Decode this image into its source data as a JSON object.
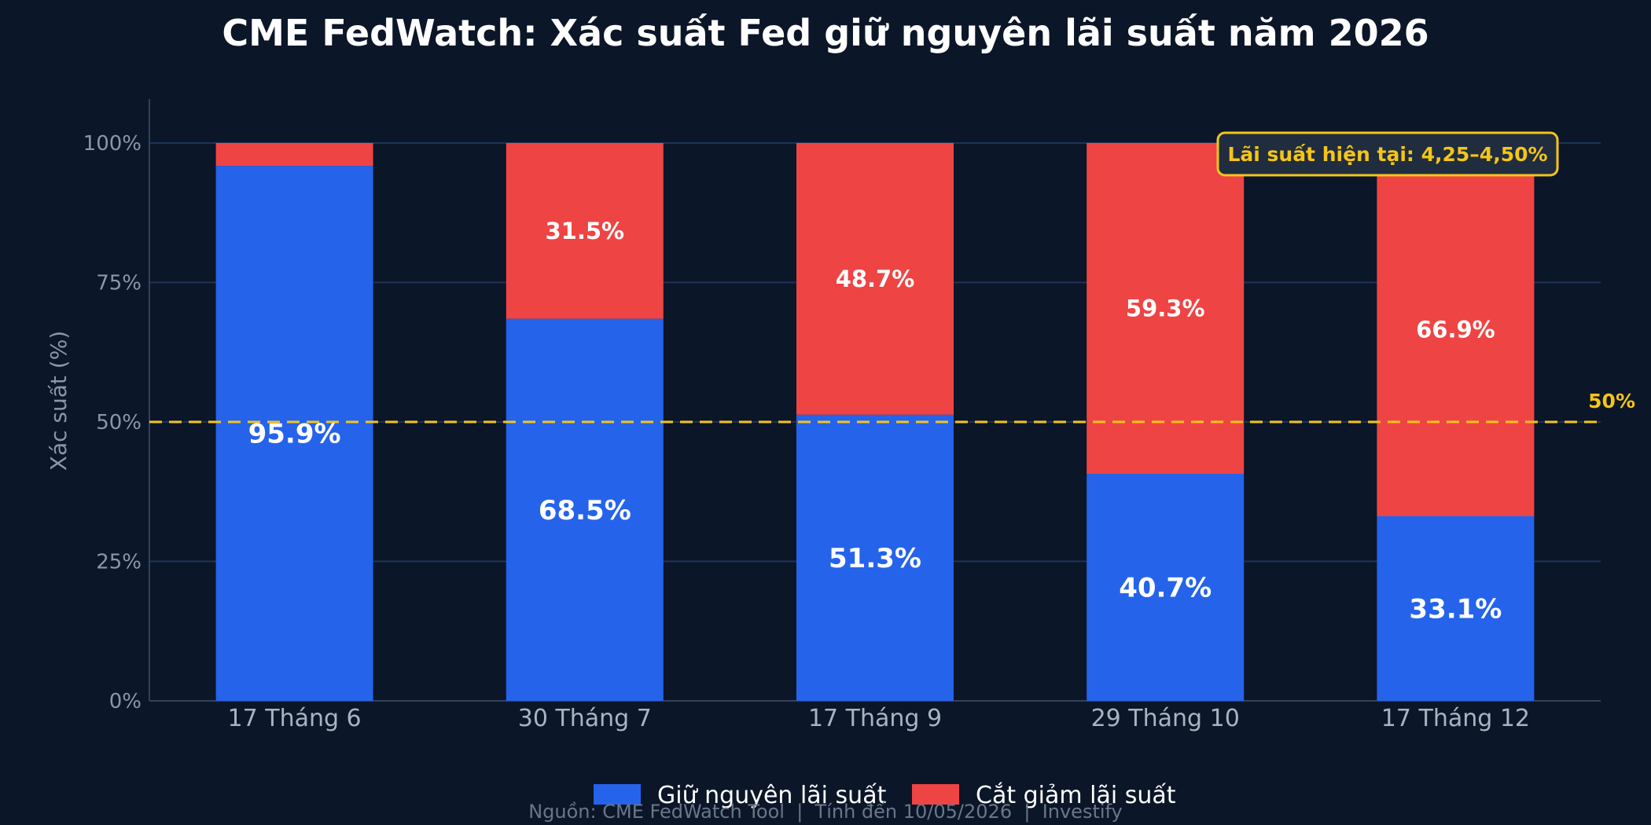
{
  "chart_data": {
    "type": "bar",
    "stacked": true,
    "title": "CME FedWatch: Xác suất Fed giữ nguyên lãi suất năm 2026",
    "ylabel": "Xác suất (%)",
    "ylim": [
      0,
      100
    ],
    "yticks": [
      "0%",
      "25%",
      "50%",
      "75%",
      "100%"
    ],
    "grid": true,
    "categories": [
      "17 Tháng 6",
      "30 Tháng 7",
      "17 Tháng 9",
      "29 Tháng 10",
      "17 Tháng 12"
    ],
    "series": [
      {
        "name": "Giữ nguyên lãi suất",
        "color": "#2563eb",
        "values": [
          95.9,
          68.5,
          51.3,
          40.7,
          33.1
        ],
        "labels": [
          "95.9%",
          "68.5%",
          "51.3%",
          "40.7%",
          "33.1%"
        ]
      },
      {
        "name": "Cắt giảm lãi suất",
        "color": "#ef4444",
        "values": [
          4.1,
          31.5,
          48.7,
          59.3,
          66.9
        ],
        "labels": [
          "",
          "31.5%",
          "48.7%",
          "59.3%",
          "66.9%"
        ]
      }
    ],
    "reference_line": {
      "value": 50,
      "label": "50%",
      "color": "#f5c518"
    },
    "annotation": "Lãi suất hiện tại: 4,25–4,50%",
    "legend_position": "bottom-center",
    "source": "Nguồn: CME FedWatch Tool  |  Tính đến 10/05/2026  |  Investify"
  },
  "colors": {
    "background": "#0b1628",
    "grid": "#1e3357",
    "axis": "#33415a",
    "annotation_bg": "#1f2d3f",
    "annotation_border": "#f5c518"
  }
}
